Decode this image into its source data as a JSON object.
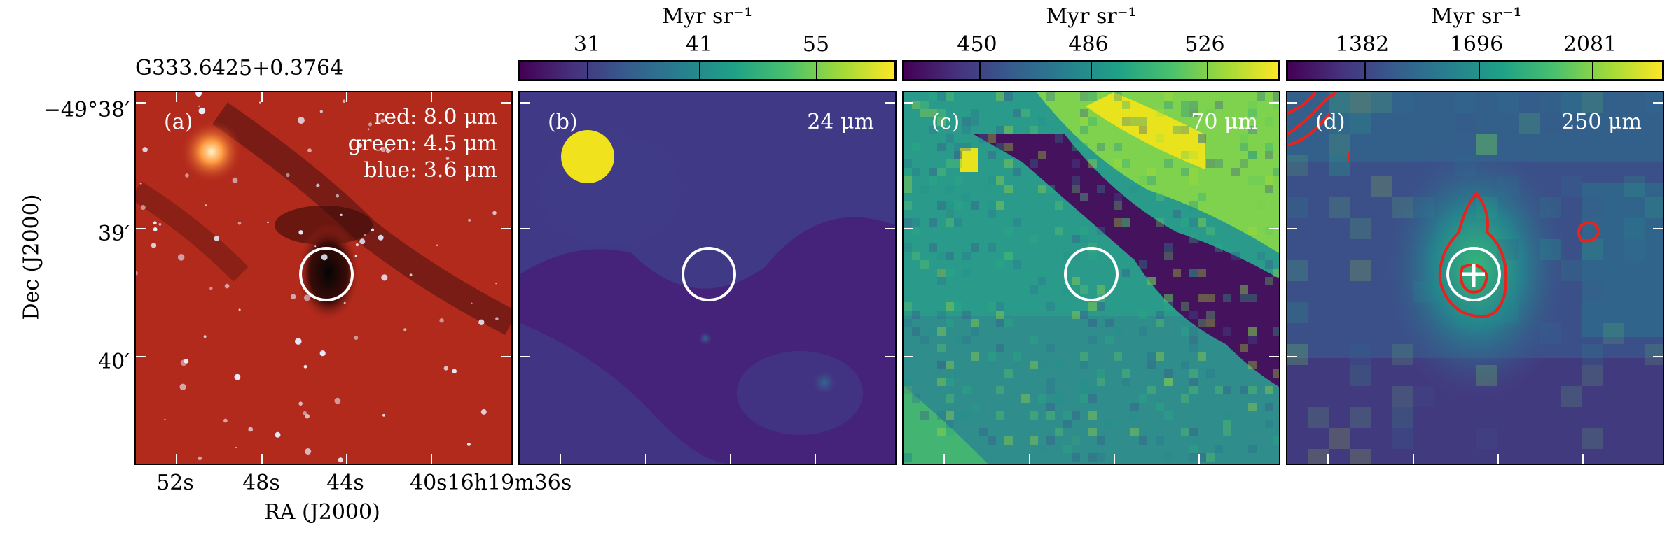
{
  "source_name": "G333.6425+0.3764",
  "axes": {
    "ylabel": "Dec (J2000)",
    "xlabel": "RA (J2000)",
    "dec_ticks": [
      "−49°38′",
      "39′",
      "40′"
    ],
    "ra_ticks": [
      "52s",
      "48s",
      "44s",
      "40s16h19m36s"
    ]
  },
  "panels": [
    {
      "label": "(a)",
      "legend": [
        "red: 8.0 μm",
        "green: 4.5 μm",
        "blue: 3.6 μm"
      ]
    },
    {
      "label": "(b)",
      "wavelength": "24 μm",
      "colorbar": {
        "unit": "Myr sr⁻¹",
        "ticks": [
          "31",
          "41",
          "55"
        ]
      }
    },
    {
      "label": "(c)",
      "wavelength": "70 μm",
      "colorbar": {
        "unit": "Myr sr⁻¹",
        "ticks": [
          "450",
          "486",
          "526"
        ]
      }
    },
    {
      "label": "(d)",
      "wavelength": "250 μm",
      "colorbar": {
        "unit": "Myr sr⁻¹",
        "ticks": [
          "1382",
          "1696",
          "2081"
        ]
      }
    }
  ],
  "colors": {
    "circle": "#ffffff",
    "contour": "#e8231d",
    "colormap": "viridis",
    "panel_a_bg": "#b22a1c"
  }
}
